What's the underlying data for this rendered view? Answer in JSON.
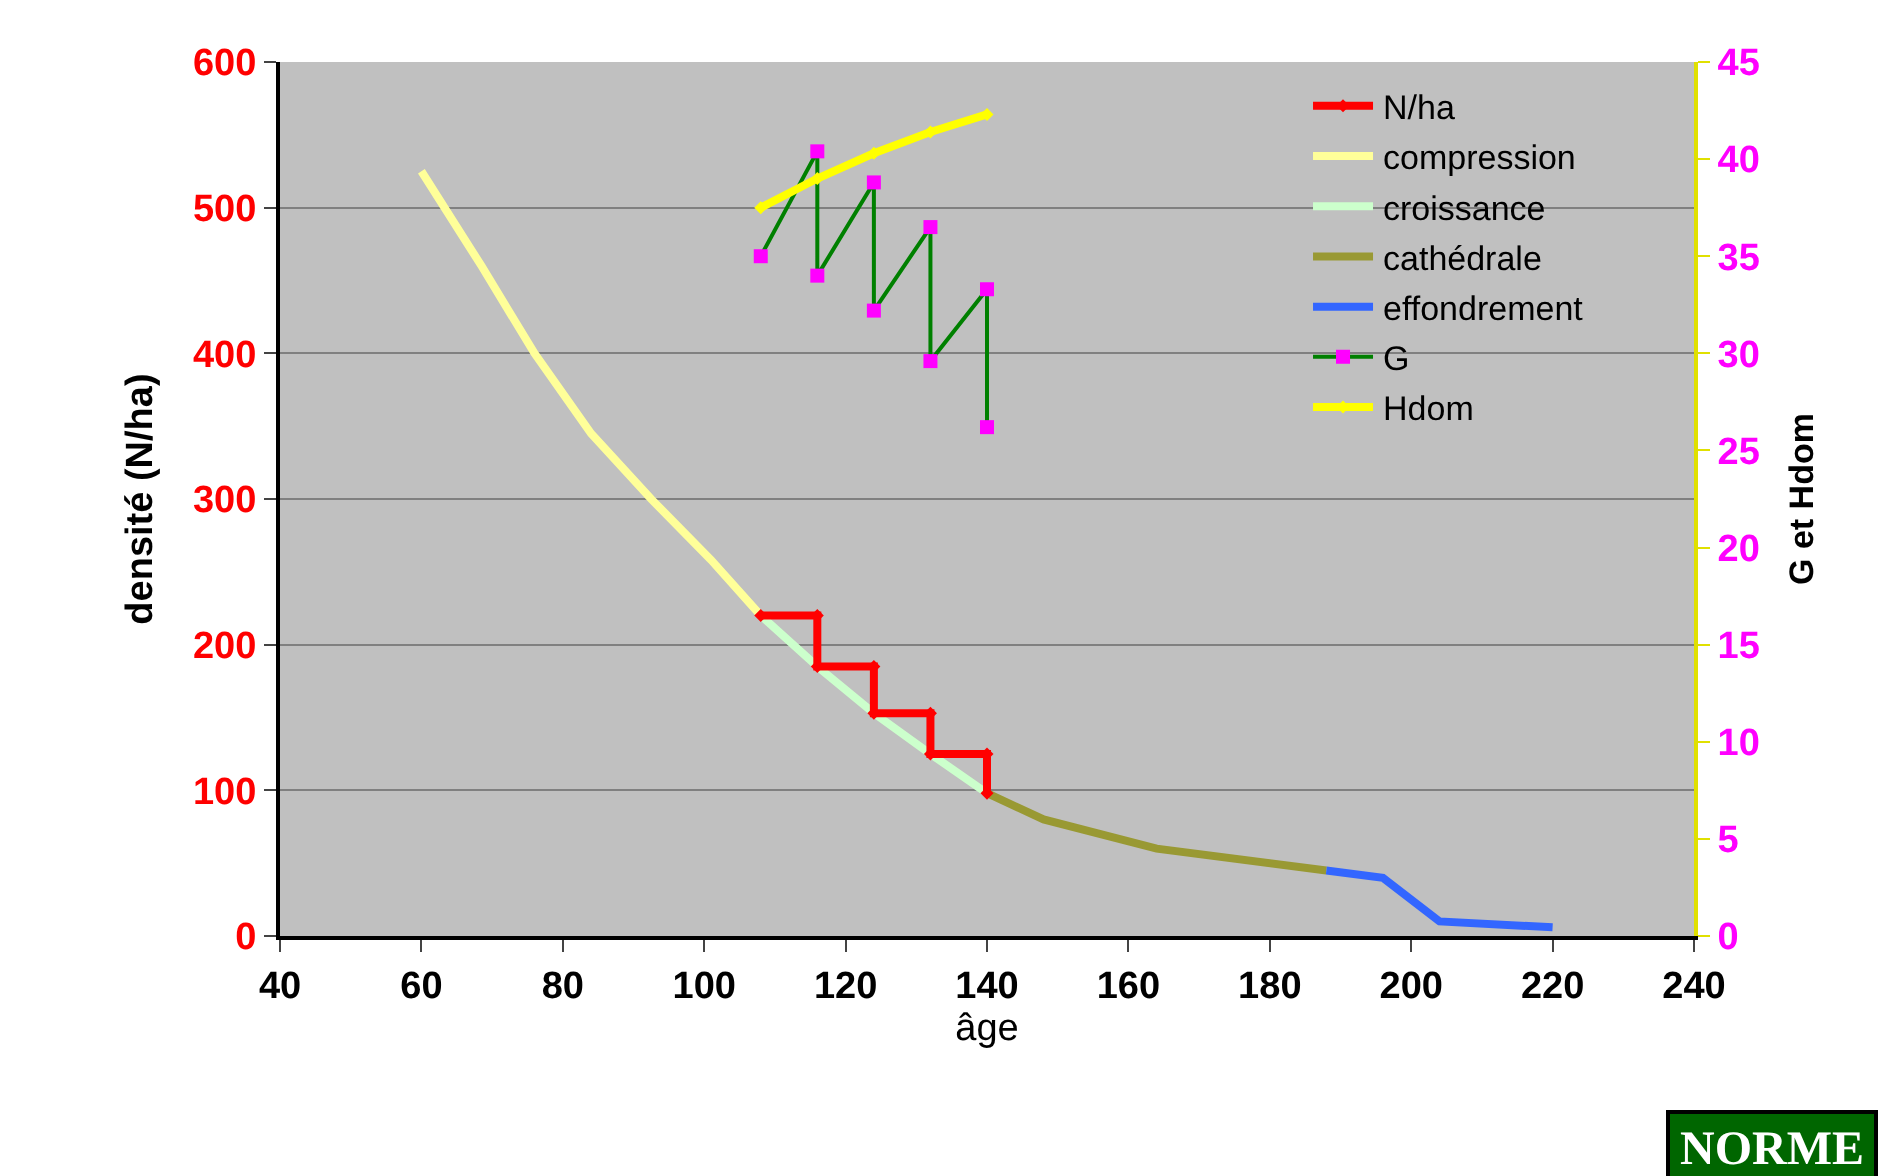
{
  "chart_data": {
    "type": "line",
    "xlabel": "âge",
    "ylabel": "densité (N/ha)",
    "y2label": "G et Hdom",
    "xlim": [
      40,
      240
    ],
    "xticks": [
      40,
      60,
      80,
      100,
      120,
      140,
      160,
      180,
      200,
      220,
      240
    ],
    "ylim": [
      0,
      600
    ],
    "yticks": [
      0,
      100,
      200,
      300,
      400,
      500,
      600
    ],
    "y2lim": [
      0,
      45
    ],
    "y2ticks": [
      0,
      5,
      10,
      15,
      20,
      25,
      30,
      35,
      40,
      45
    ],
    "grid": "y",
    "legend": "top right",
    "marker": "none",
    "line_style": "solid",
    "series": [
      {
        "name": "N/ha",
        "color": "#ff0000",
        "marker": "diamond",
        "x": [
          108,
          116,
          116,
          124,
          124,
          132,
          132,
          140,
          140
        ],
        "values": [
          220,
          220,
          185,
          185,
          153,
          153,
          125,
          125,
          98
        ]
      },
      {
        "name": "compression",
        "color": "#ffff99",
        "x": [
          60,
          68.5,
          76,
          84,
          92.5,
          101,
          108
        ],
        "values": [
          525,
          460,
          400,
          345,
          300,
          258,
          220
        ]
      },
      {
        "name": "croissance",
        "color": "#ccffcc",
        "x": [
          108,
          116,
          124,
          132,
          140
        ],
        "values": [
          220,
          185,
          153,
          125,
          98
        ]
      },
      {
        "name": "cathédrale",
        "color": "#999933",
        "x": [
          140,
          148,
          164,
          188
        ],
        "values": [
          98,
          80,
          60,
          45
        ]
      },
      {
        "name": "effondrement",
        "color": "#3366ff",
        "x": [
          188,
          196,
          204,
          220
        ],
        "values": [
          45,
          40,
          10,
          6
        ]
      },
      {
        "name": "G",
        "color": "#008000",
        "axis": "y2",
        "marker": "square",
        "colors": [
          "#ff00ff",
          "#ff00ff",
          "#ff00ff",
          "#ff00ff",
          "#ff00ff",
          "#ff00ff",
          "#ff00ff",
          "#ff00ff",
          "#ff00ff"
        ],
        "x": [
          108,
          116,
          116,
          124,
          124,
          132,
          132,
          140,
          140
        ],
        "values": [
          35,
          40.4,
          34,
          38.8,
          32.2,
          36.5,
          29.6,
          33.3,
          26.2
        ]
      },
      {
        "name": "Hdom",
        "color": "#ffff00",
        "axis": "y2",
        "marker": "diamond",
        "x": [
          108,
          116,
          124,
          132,
          140
        ],
        "values": [
          37.5,
          39,
          40.3,
          41.4,
          42.3
        ]
      }
    ],
    "annotations": [
      "NORME"
    ]
  }
}
